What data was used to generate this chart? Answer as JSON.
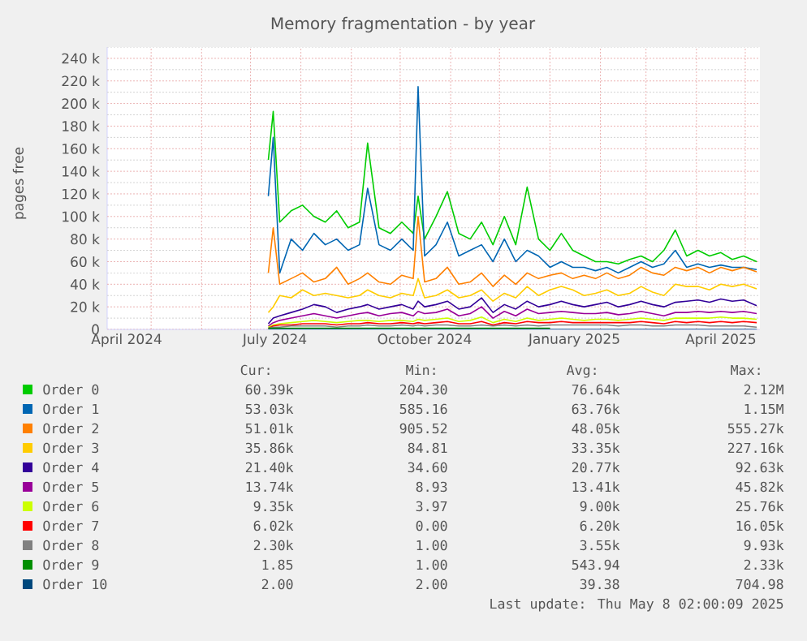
{
  "chart_data": {
    "type": "line",
    "title": "Memory fragmentation - by year",
    "ylabel": "pages free",
    "xlim": [
      "2024-04-04",
      "2025-05-10"
    ],
    "xticks": [
      {
        "value": "2024-04-16",
        "label": "April 2024"
      },
      {
        "value": "2024-05-01",
        "label": null
      },
      {
        "value": "2024-06-01",
        "label": null
      },
      {
        "value": "2024-07-01",
        "label": null
      },
      {
        "value": "2024-07-16",
        "label": "July 2024"
      },
      {
        "value": "2024-08-01",
        "label": null
      },
      {
        "value": "2024-09-01",
        "label": null
      },
      {
        "value": "2024-10-01",
        "label": null
      },
      {
        "value": "2024-10-16",
        "label": "October 2024"
      },
      {
        "value": "2024-11-01",
        "label": null
      },
      {
        "value": "2024-12-01",
        "label": null
      },
      {
        "value": "2025-01-01",
        "label": null
      },
      {
        "value": "2025-01-16",
        "label": "January 2025"
      },
      {
        "value": "2025-02-01",
        "label": null
      },
      {
        "value": "2025-03-01",
        "label": null
      },
      {
        "value": "2025-04-01",
        "label": null
      },
      {
        "value": "2025-04-16",
        "label": "April 2025"
      },
      {
        "value": "2025-05-01",
        "label": null
      }
    ],
    "ylim": [
      0,
      250000
    ],
    "yticks": [
      0,
      {
        "value": 10000,
        "label": null
      },
      {
        "value": 20000,
        "label": "20 k"
      },
      {
        "value": 30000,
        "label": null
      },
      {
        "value": 40000,
        "label": "40 k"
      },
      {
        "value": 50000,
        "label": null
      },
      {
        "value": 60000,
        "label": "60 k"
      },
      {
        "value": 70000,
        "label": null
      },
      {
        "value": 80000,
        "label": "80 k"
      },
      {
        "value": 90000,
        "label": null
      },
      {
        "value": 100000,
        "label": "100 k"
      },
      {
        "value": 110000,
        "label": null
      },
      {
        "value": 120000,
        "label": "120 k"
      },
      {
        "value": 130000,
        "label": null
      },
      {
        "value": 140000,
        "label": "140 k"
      },
      {
        "value": 150000,
        "label": null
      },
      {
        "value": 160000,
        "label": "160 k"
      },
      {
        "value": 170000,
        "label": null
      },
      {
        "value": 180000,
        "label": "180 k"
      },
      {
        "value": 190000,
        "label": null
      },
      {
        "value": 200000,
        "label": "200 k"
      },
      {
        "value": 210000,
        "label": null
      },
      {
        "value": 220000,
        "label": "220 k"
      },
      {
        "value": 230000,
        "label": null
      },
      {
        "value": 240000,
        "label": "240 k"
      },
      {
        "value": 250000,
        "label": null
      }
    ],
    "grid": true,
    "legend": "bottom",
    "x": [
      "2024-07-12",
      "2024-07-15",
      "2024-07-19",
      "2024-07-26",
      "2024-08-02",
      "2024-08-09",
      "2024-08-16",
      "2024-08-23",
      "2024-08-30",
      "2024-09-06",
      "2024-09-11",
      "2024-09-18",
      "2024-09-25",
      "2024-10-02",
      "2024-10-09",
      "2024-10-12",
      "2024-10-16",
      "2024-10-23",
      "2024-10-30",
      "2024-11-06",
      "2024-11-13",
      "2024-11-20",
      "2024-11-27",
      "2024-12-04",
      "2024-12-11",
      "2024-12-18",
      "2024-12-25",
      "2025-01-01",
      "2025-01-08",
      "2025-01-15",
      "2025-01-22",
      "2025-01-29",
      "2025-02-05",
      "2025-02-12",
      "2025-02-19",
      "2025-02-26",
      "2025-03-05",
      "2025-03-12",
      "2025-03-19",
      "2025-03-26",
      "2025-04-02",
      "2025-04-09",
      "2025-04-16",
      "2025-04-23",
      "2025-04-30",
      "2025-05-08"
    ],
    "series": [
      {
        "name": "Order 0",
        "color": "#00cc00",
        "values": [
          150000,
          193000,
          95000,
          105000,
          110000,
          100000,
          95000,
          105000,
          90000,
          95000,
          165000,
          90000,
          85000,
          95000,
          85000,
          118000,
          80000,
          100000,
          122000,
          85000,
          80000,
          95000,
          75000,
          100000,
          75000,
          126000,
          80000,
          70000,
          85000,
          70000,
          65000,
          60000,
          60000,
          58000,
          62000,
          65000,
          60000,
          70000,
          88000,
          65000,
          70000,
          65000,
          68000,
          62000,
          65000,
          60000
        ]
      },
      {
        "name": "Order 1",
        "color": "#0066b3",
        "values": [
          118000,
          170000,
          50000,
          80000,
          70000,
          85000,
          75000,
          80000,
          70000,
          75000,
          125000,
          75000,
          70000,
          80000,
          70000,
          215000,
          65000,
          75000,
          95000,
          65000,
          70000,
          75000,
          60000,
          80000,
          60000,
          70000,
          65000,
          55000,
          60000,
          55000,
          55000,
          52000,
          55000,
          50000,
          55000,
          60000,
          55000,
          58000,
          70000,
          55000,
          58000,
          55000,
          57000,
          55000,
          55000,
          53000
        ]
      },
      {
        "name": "Order 2",
        "color": "#ff8000",
        "values": [
          50000,
          90000,
          40000,
          45000,
          50000,
          42000,
          45000,
          55000,
          40000,
          45000,
          50000,
          42000,
          40000,
          48000,
          45000,
          100000,
          42000,
          45000,
          55000,
          40000,
          42000,
          50000,
          38000,
          48000,
          40000,
          50000,
          45000,
          48000,
          50000,
          45000,
          48000,
          45000,
          50000,
          45000,
          48000,
          55000,
          50000,
          48000,
          55000,
          52000,
          55000,
          50000,
          55000,
          52000,
          55000,
          51000
        ]
      },
      {
        "name": "Order 3",
        "color": "#ffcc00",
        "values": [
          15000,
          20000,
          30000,
          28000,
          35000,
          30000,
          32000,
          30000,
          28000,
          30000,
          35000,
          30000,
          28000,
          32000,
          30000,
          45000,
          28000,
          30000,
          35000,
          28000,
          30000,
          35000,
          25000,
          32000,
          28000,
          38000,
          30000,
          35000,
          38000,
          35000,
          30000,
          32000,
          35000,
          30000,
          32000,
          38000,
          33000,
          30000,
          40000,
          38000,
          38000,
          35000,
          40000,
          38000,
          40000,
          36000
        ]
      },
      {
        "name": "Order 4",
        "color": "#330099",
        "values": [
          5000,
          10000,
          12000,
          15000,
          18000,
          22000,
          20000,
          15000,
          18000,
          20000,
          22000,
          18000,
          20000,
          22000,
          18000,
          25000,
          20000,
          22000,
          25000,
          18000,
          20000,
          28000,
          15000,
          22000,
          18000,
          25000,
          20000,
          22000,
          25000,
          22000,
          20000,
          22000,
          24000,
          20000,
          22000,
          25000,
          22000,
          20000,
          24000,
          25000,
          26000,
          24000,
          27000,
          25000,
          26000,
          21000
        ]
      },
      {
        "name": "Order 5",
        "color": "#990099",
        "values": [
          3000,
          6000,
          8000,
          10000,
          12000,
          14000,
          12000,
          10000,
          12000,
          14000,
          15000,
          12000,
          14000,
          15000,
          12000,
          16000,
          14000,
          15000,
          18000,
          12000,
          14000,
          20000,
          10000,
          16000,
          12000,
          18000,
          14000,
          15000,
          16000,
          15000,
          14000,
          14000,
          15000,
          13000,
          14000,
          16000,
          14000,
          12000,
          15000,
          15000,
          16000,
          15000,
          16000,
          15000,
          16000,
          14000
        ]
      },
      {
        "name": "Order 6",
        "color": "#ccff00",
        "values": [
          2000,
          4000,
          5000,
          6000,
          7000,
          8000,
          7000,
          6000,
          7000,
          8000,
          8000,
          7000,
          8000,
          8000,
          7000,
          9000,
          8000,
          9000,
          10000,
          7000,
          8000,
          11000,
          6000,
          9000,
          7000,
          10000,
          8000,
          9000,
          10000,
          9000,
          8000,
          9000,
          9000,
          8000,
          9000,
          10000,
          9000,
          8000,
          10000,
          10000,
          10000,
          10000,
          11000,
          10000,
          10000,
          9000
        ]
      },
      {
        "name": "Order 7",
        "color": "#ff0000",
        "values": [
          1000,
          3000,
          4000,
          4000,
          5000,
          5000,
          5000,
          4000,
          5000,
          5000,
          6000,
          5000,
          5000,
          6000,
          5000,
          6000,
          5000,
          6000,
          7000,
          5000,
          5000,
          7000,
          4000,
          6000,
          5000,
          7000,
          6000,
          6000,
          7000,
          6000,
          6000,
          6000,
          6000,
          6000,
          6000,
          7000,
          6000,
          5000,
          7000,
          6000,
          7000,
          6000,
          7000,
          6000,
          7000,
          6000
        ]
      },
      {
        "name": "Order 8",
        "color": "#808080",
        "values": [
          1000,
          2000,
          2000,
          3000,
          3000,
          3000,
          3000,
          2000,
          3000,
          3000,
          4000,
          3000,
          3000,
          4000,
          3000,
          4000,
          3000,
          4000,
          4000,
          3000,
          3000,
          4000,
          3000,
          4000,
          3000,
          4000,
          3000,
          4000,
          4000,
          4000,
          4000,
          4000,
          4000,
          3000,
          4000,
          4000,
          3000,
          3000,
          4000,
          4000,
          4000,
          3000,
          3000,
          3000,
          3000,
          2000
        ]
      },
      {
        "name": "Order 9",
        "color": "#008f00",
        "values": [
          1000,
          1000,
          1000,
          1000,
          1000,
          1000,
          1000,
          1000,
          1000,
          1000,
          1000,
          1000,
          1000,
          1000,
          1000,
          1000,
          1000,
          1000,
          1000,
          1000,
          1000,
          1000,
          1000,
          1000,
          1000,
          1000,
          1000,
          1000,
          null,
          null,
          null,
          null,
          null,
          null,
          null,
          null,
          null,
          null,
          null,
          null,
          null,
          null,
          null,
          null,
          null,
          null
        ]
      },
      {
        "name": "Order 10",
        "color": "#00487d",
        "values": [
          0,
          0,
          0,
          0,
          0,
          0,
          0,
          0,
          0,
          0,
          0,
          0,
          0,
          0,
          0,
          0,
          0,
          0,
          0,
          0,
          0,
          0,
          0,
          0,
          0,
          0,
          0,
          0,
          0,
          0,
          0,
          0,
          0,
          0,
          0,
          0,
          0,
          0,
          0,
          0,
          0,
          0,
          0,
          0,
          0,
          0
        ]
      }
    ],
    "annotations": [
      "Cur:",
      "Min:",
      "Avg:",
      "Max:",
      "60.39k",
      "204.30",
      "76.64k",
      "2.12M",
      "53.03k",
      "585.16",
      "63.76k",
      "1.15M",
      "51.01k",
      "905.52",
      "48.05k",
      "555.27k",
      "35.86k",
      "84.81",
      "33.35k",
      "227.16k",
      "21.40k",
      "34.60",
      "20.77k",
      "92.63k",
      "13.74k",
      "8.93",
      "13.41k",
      "45.82k",
      "9.35k",
      "3.97",
      "9.00k",
      "25.76k",
      "6.02k",
      "0.00",
      "6.20k",
      "16.05k",
      "2.30k",
      "1.00",
      "3.55k",
      "9.93k",
      "1.85",
      "1.00",
      "543.94",
      "2.33k",
      "2.00",
      "2.00",
      "39.38",
      "704.98",
      "Last update: Thu May  8 02:00:09 2025"
    ]
  }
}
